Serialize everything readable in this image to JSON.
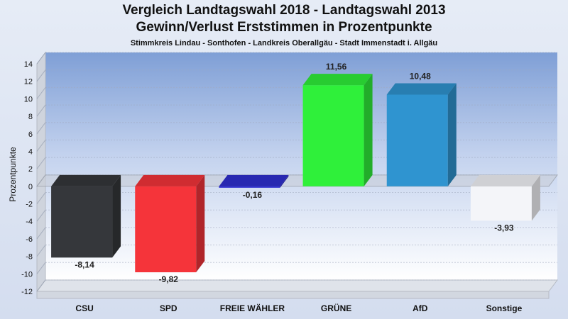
{
  "chart_data": {
    "type": "bar",
    "title": "Vergleich Landtagswahl 2018 - Landtagswahl 2013",
    "subtitle": "Gewinn/Verlust Erststimmen in Prozentpunkte",
    "subtitle2": "Stimmkreis Lindau - Sonthofen - Landkreis Oberallgäu - Stadt Immenstadt i. Allgäu",
    "ylabel": "Prozentpunkte",
    "xlabel": "",
    "ylim": [
      -12,
      14
    ],
    "yticks": [
      14,
      12,
      10,
      8,
      6,
      4,
      2,
      0,
      -2,
      -4,
      -6,
      -8,
      -10,
      -12
    ],
    "categories": [
      "CSU",
      "SPD",
      "FREIE WÄHLER",
      "GRÜNE",
      "AfD",
      "Sonstige"
    ],
    "values": [
      -8.14,
      -9.82,
      -0.16,
      11.56,
      10.48,
      -3.93
    ],
    "value_labels": [
      "-8,14",
      "-9,82",
      "-0,16",
      "11,56",
      "10,48",
      "-3,93"
    ],
    "colors": [
      "#35373b",
      "#f5343a",
      "#2f2fd0",
      "#2ff03a",
      "#2f94d0",
      "#f4f5f9"
    ],
    "grid": true,
    "style": "3d"
  }
}
